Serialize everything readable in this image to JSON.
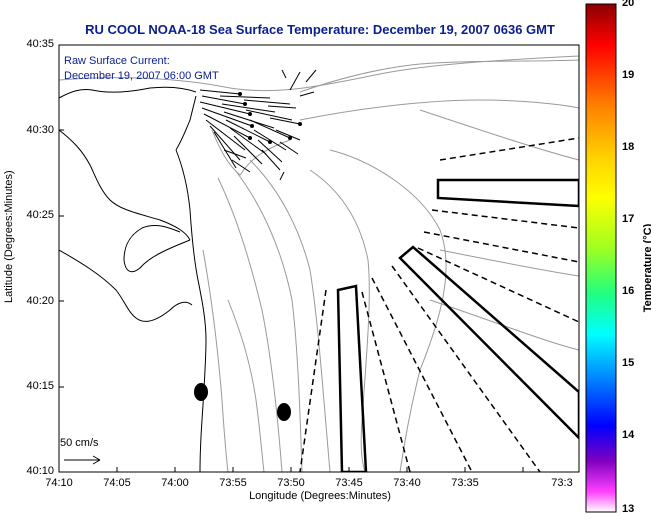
{
  "title": "RU COOL  NOAA-18  Sea Surface Temperature:  December 19, 2007 0636 GMT",
  "current_label": {
    "line1": "Raw Surface Current:",
    "line2": "December 19, 2007 06:00 GMT"
  },
  "axes": {
    "xlabel": "Longitude (Degrees:Minutes)",
    "ylabel": "Latitude (Degrees:Minutes)",
    "x_ticks": [
      "74:10",
      "74:05",
      "74:00",
      "73:55",
      "73:50",
      "73:45",
      "73:40",
      "73:35",
      "73:3"
    ],
    "y_ticks": [
      "40:35",
      "40:30",
      "40:25",
      "40:20",
      "40:15",
      "40:10"
    ]
  },
  "scale": {
    "label": "50 cm/s"
  },
  "colorbar": {
    "label": "Temperature (°C)",
    "ticks": [
      "20",
      "19",
      "18",
      "17",
      "16",
      "15",
      "14",
      "13"
    ],
    "colors": [
      "#8b0000",
      "#ff0000",
      "#ff8000",
      "#ffd000",
      "#ffff00",
      "#a0ff20",
      "#20ff80",
      "#00ffff",
      "#0080ff",
      "#0000ff",
      "#8000c0",
      "#ff40ff",
      "#ffffff"
    ]
  },
  "colors": {
    "title": "#0a1f8f",
    "contour": "#9a9a9a"
  }
}
